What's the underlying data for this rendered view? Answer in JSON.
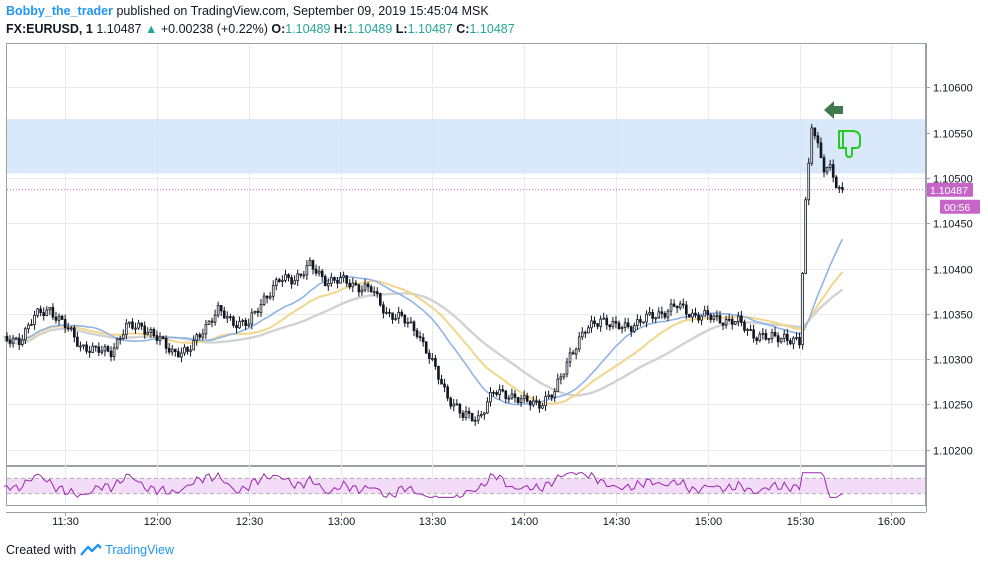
{
  "header": {
    "author": "Bobby_the_trader",
    "published": "published on TradingView.com, September 09, 2019 15:45:04 MSK",
    "symbol": "FX:EURUSD, 1",
    "last": "1.10487",
    "change": "+0.00238 (+0.22%)",
    "o_label": "O:",
    "o_value": "1.10489",
    "h_label": "H:",
    "h_value": "1.10489",
    "l_label": "L:",
    "l_value": "1.10487",
    "c_label": "C:",
    "c_value": "1.10487"
  },
  "footer": {
    "created_with": "Created with",
    "brand": "TradingView"
  },
  "badges": {
    "price": "1.10487",
    "countdown": "00:56"
  },
  "colors": {
    "up": "#26a69a",
    "candle": "#131722",
    "zone": "#d4e4fa",
    "ma_blue": "#90b4e8",
    "ma_yellow": "#f2d68c",
    "ma_gray": "#d2d2d2",
    "rsi": "#9c27b0",
    "rsi_band": "#f3dcf7",
    "badge": "#c764c8",
    "arrow": "#3d7a4d",
    "thumb": "#22cc22"
  },
  "icons": [
    "arrow-left-icon",
    "thumbs-down-icon",
    "tradingview-logo-icon"
  ],
  "chart_data": {
    "type": "candlestick",
    "timeframe": "1",
    "x_ticks": [
      "11:30",
      "12:00",
      "12:30",
      "13:00",
      "13:30",
      "14:00",
      "14:30",
      "15:00",
      "15:30",
      "16:00"
    ],
    "x_range": [
      "11:11",
      "16:11"
    ],
    "y_ticks": [
      1.106,
      1.1055,
      1.105,
      1.1045,
      1.104,
      1.1035,
      1.103,
      1.1025,
      1.102
    ],
    "y_range": [
      1.10183,
      1.10648
    ],
    "resistance_zone": [
      1.10505,
      1.10565
    ],
    "last_price": 1.10487,
    "candles_approx": [
      [
        "11:10",
        1.10318
      ],
      [
        "11:15",
        1.10322
      ],
      [
        "11:20",
        1.10346
      ],
      [
        "11:25",
        1.10356
      ],
      [
        "11:30",
        1.10336
      ],
      [
        "11:35",
        1.10316
      ],
      [
        "11:40",
        1.10308
      ],
      [
        "11:45",
        1.1031
      ],
      [
        "11:50",
        1.10334
      ],
      [
        "11:55",
        1.10338
      ],
      [
        "12:00",
        1.10322
      ],
      [
        "12:05",
        1.1031
      ],
      [
        "12:10",
        1.10306
      ],
      [
        "12:15",
        1.10334
      ],
      [
        "12:20",
        1.10352
      ],
      [
        "12:25",
        1.10342
      ],
      [
        "12:30",
        1.10338
      ],
      [
        "12:35",
        1.10368
      ],
      [
        "12:40",
        1.10386
      ],
      [
        "12:45",
        1.1039
      ],
      [
        "12:50",
        1.10402
      ],
      [
        "12:55",
        1.10388
      ],
      [
        "13:00",
        1.10386
      ],
      [
        "13:05",
        1.10382
      ],
      [
        "13:10",
        1.10376
      ],
      [
        "13:15",
        1.10352
      ],
      [
        "13:20",
        1.10344
      ],
      [
        "13:25",
        1.10332
      ],
      [
        "13:30",
        1.10294
      ],
      [
        "13:35",
        1.1026
      ],
      [
        "13:40",
        1.10236
      ],
      [
        "13:45",
        1.10236
      ],
      [
        "13:50",
        1.10262
      ],
      [
        "13:55",
        1.10262
      ],
      [
        "14:00",
        1.10252
      ],
      [
        "14:05",
        1.10252
      ],
      [
        "14:10",
        1.10262
      ],
      [
        "14:15",
        1.10306
      ],
      [
        "14:20",
        1.1033
      ],
      [
        "14:25",
        1.10346
      ],
      [
        "14:30",
        1.10334
      ],
      [
        "14:35",
        1.10338
      ],
      [
        "14:40",
        1.10344
      ],
      [
        "14:45",
        1.10352
      ],
      [
        "14:50",
        1.10358
      ],
      [
        "14:55",
        1.1035
      ],
      [
        "15:00",
        1.10346
      ],
      [
        "15:05",
        1.10344
      ],
      [
        "15:10",
        1.1034
      ],
      [
        "15:15",
        1.10328
      ],
      [
        "15:20",
        1.10322
      ],
      [
        "15:25",
        1.10326
      ],
      [
        "15:30",
        1.10316
      ],
      [
        "15:32",
        1.10474
      ],
      [
        "15:34",
        1.10558
      ],
      [
        "15:36",
        1.10538
      ],
      [
        "15:38",
        1.10508
      ],
      [
        "15:40",
        1.10512
      ],
      [
        "15:42",
        1.1049
      ],
      [
        "15:44",
        1.10487
      ]
    ],
    "rsi_band": [
      30,
      70
    ]
  }
}
